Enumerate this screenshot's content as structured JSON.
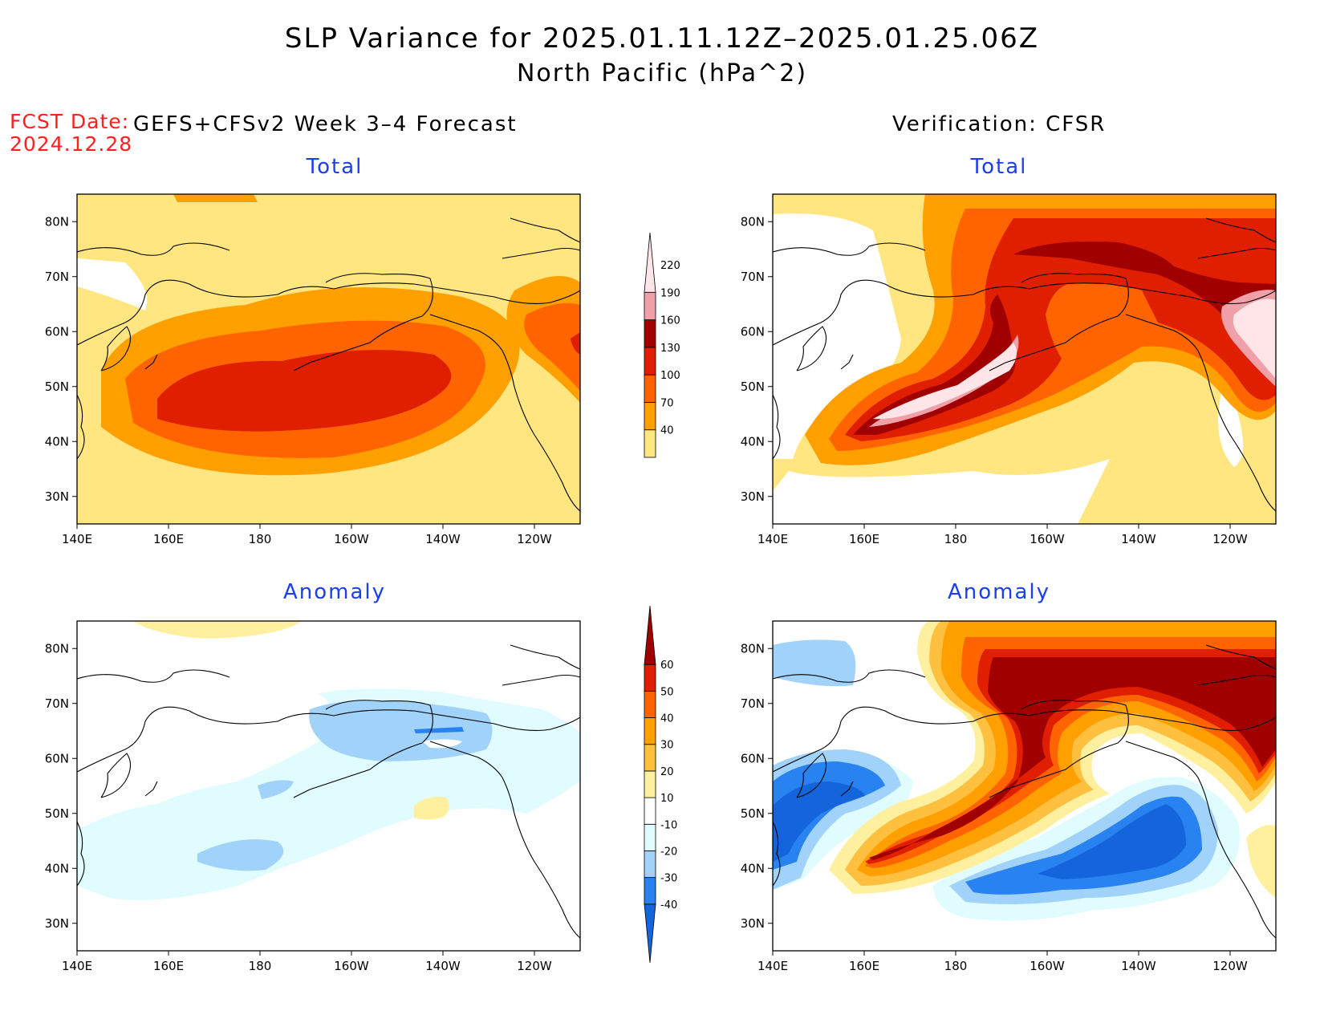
{
  "header": {
    "title": "SLP Variance for 2025.01.11.12Z–2025.01.25.06Z",
    "subtitle": "North Pacific (hPa^2)",
    "fcst_label": "FCST Date:",
    "fcst_date": "2024.12.28",
    "left_column_title": "GEFS+CFSv2 Week 3–4 Forecast",
    "right_column_title": "Verification: CFSR"
  },
  "colors": {
    "total_scale": [
      "#ffe680",
      "#ffa000",
      "#ff6400",
      "#e01e00",
      "#a00000",
      "#f0a0a8",
      "#ffe4e8"
    ],
    "anomaly_scale": [
      "#1464dc",
      "#2882f0",
      "#a0d2fa",
      "#e0fcff",
      "#ffffff",
      "#fff0a0",
      "#ffc040",
      "#ffa000",
      "#ff6400",
      "#e01e00",
      "#a00000"
    ],
    "panel_title": "#1a3ef0",
    "fcst_date": "#ff2020"
  },
  "chart_data": [
    {
      "type": "heatmap",
      "panel": "top-left",
      "title": "Total",
      "xticks": [
        "140E",
        "160E",
        "180",
        "160W",
        "140W",
        "120W"
      ],
      "yticks": [
        "30N",
        "40N",
        "50N",
        "60N",
        "70N",
        "80N"
      ],
      "xlim_deg_east": [
        140,
        250
      ],
      "ylim_deg_north": [
        25,
        85
      ],
      "levels": [
        40,
        70,
        100,
        130,
        160,
        190,
        220
      ],
      "features": [
        {
          "center": [
            176,
            46
          ],
          "peak_level": 130,
          "note": "broad maximum along 40-50N"
        }
      ]
    },
    {
      "type": "heatmap",
      "panel": "top-right",
      "title": "Total",
      "xticks": [
        "140E",
        "160E",
        "180",
        "160W",
        "140W",
        "120W"
      ],
      "yticks": [
        "30N",
        "40N",
        "50N",
        "60N",
        "70N",
        "80N"
      ],
      "xlim_deg_east": [
        140,
        250
      ],
      "ylim_deg_north": [
        25,
        85
      ],
      "levels": [
        40,
        70,
        100,
        130,
        160,
        190,
        220
      ],
      "features": [
        {
          "center": [
            178,
            45
          ],
          "peak_level": 220
        },
        {
          "center": [
            247,
            55
          ],
          "peak_level": 220
        },
        {
          "center": [
            185,
            75
          ],
          "peak_level": 160
        }
      ]
    },
    {
      "type": "heatmap",
      "panel": "bottom-left",
      "title": "Anomaly",
      "xticks": [
        "140E",
        "160E",
        "180",
        "160W",
        "140W",
        "120W"
      ],
      "yticks": [
        "30N",
        "40N",
        "50N",
        "60N",
        "70N",
        "80N"
      ],
      "xlim_deg_east": [
        140,
        250
      ],
      "ylim_deg_north": [
        25,
        85
      ],
      "levels": [
        -40,
        -30,
        -20,
        -10,
        10,
        20,
        30,
        40,
        50,
        60
      ],
      "features": [
        {
          "center": [
            215,
            66
          ],
          "peak_level": -20
        },
        {
          "center": [
            218,
            50
          ],
          "peak_level": 10
        }
      ]
    },
    {
      "type": "heatmap",
      "panel": "bottom-right",
      "title": "Anomaly",
      "xticks": [
        "140E",
        "160E",
        "180",
        "160W",
        "140W",
        "120W"
      ],
      "yticks": [
        "30N",
        "40N",
        "50N",
        "60N",
        "70N",
        "80N"
      ],
      "xlim_deg_east": [
        140,
        250
      ],
      "ylim_deg_north": [
        25,
        85
      ],
      "levels": [
        -40,
        -30,
        -20,
        -10,
        10,
        20,
        30,
        40,
        50,
        60
      ],
      "features": [
        {
          "center": [
            178,
            44
          ],
          "peak_level": 60
        },
        {
          "center": [
            225,
            72
          ],
          "peak_level": 60
        },
        {
          "center": [
            150,
            50
          ],
          "peak_level": -40
        },
        {
          "center": [
            228,
            45
          ],
          "peak_level": -40
        }
      ]
    }
  ]
}
